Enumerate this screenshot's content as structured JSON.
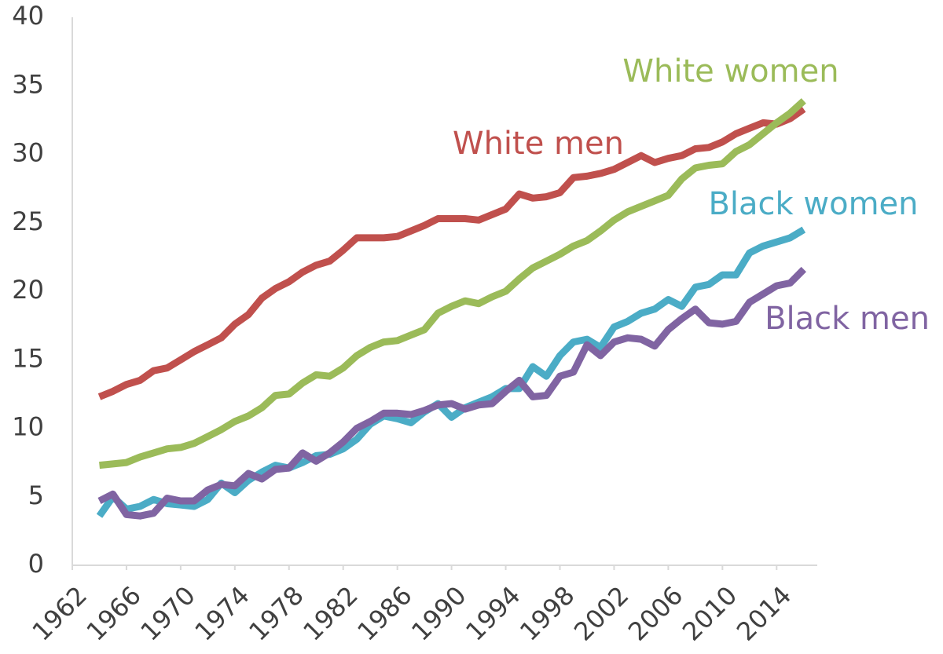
{
  "chart_data": {
    "type": "line",
    "x": [
      1964,
      1965,
      1966,
      1967,
      1968,
      1969,
      1970,
      1971,
      1972,
      1973,
      1974,
      1975,
      1976,
      1977,
      1978,
      1979,
      1980,
      1981,
      1982,
      1983,
      1984,
      1985,
      1986,
      1987,
      1988,
      1989,
      1990,
      1991,
      1992,
      1993,
      1994,
      1995,
      1996,
      1997,
      1998,
      1999,
      2000,
      2001,
      2002,
      2003,
      2004,
      2005,
      2006,
      2007,
      2008,
      2009,
      2010,
      2011,
      2012,
      2013,
      2014,
      2015,
      2016
    ],
    "series": [
      {
        "name": "White men",
        "color": "#c0504d",
        "values": [
          12.3,
          12.7,
          13.2,
          13.5,
          14.2,
          14.4,
          15.0,
          15.6,
          16.1,
          16.6,
          17.6,
          18.3,
          19.5,
          20.2,
          20.7,
          21.4,
          21.9,
          22.2,
          23.0,
          23.9,
          23.9,
          23.9,
          24.0,
          24.4,
          24.8,
          25.3,
          25.3,
          25.3,
          25.2,
          25.6,
          26.0,
          27.1,
          26.8,
          26.9,
          27.2,
          28.3,
          28.4,
          28.6,
          28.9,
          29.4,
          29.9,
          29.4,
          29.7,
          29.9,
          30.4,
          30.5,
          30.9,
          31.5,
          31.9,
          32.3,
          32.2,
          32.6,
          33.3
        ]
      },
      {
        "name": "White women",
        "color": "#9bbb59",
        "values": [
          7.3,
          7.4,
          7.5,
          7.9,
          8.2,
          8.5,
          8.6,
          8.9,
          9.4,
          9.9,
          10.5,
          10.9,
          11.5,
          12.4,
          12.5,
          13.3,
          13.9,
          13.8,
          14.4,
          15.3,
          15.9,
          16.3,
          16.4,
          16.8,
          17.2,
          18.4,
          18.9,
          19.3,
          19.1,
          19.6,
          20.0,
          20.9,
          21.7,
          22.2,
          22.7,
          23.3,
          23.7,
          24.4,
          25.2,
          25.8,
          26.2,
          26.6,
          27.0,
          28.2,
          29.0,
          29.2,
          29.3,
          30.2,
          30.7,
          31.5,
          32.3,
          33.0,
          33.9
        ]
      },
      {
        "name": "Black women",
        "color": "#4bacc6",
        "values": [
          3.6,
          5.0,
          4.1,
          4.3,
          4.8,
          4.5,
          4.4,
          4.3,
          4.8,
          6.0,
          5.3,
          6.2,
          6.8,
          7.3,
          7.1,
          7.5,
          8.0,
          8.1,
          8.5,
          9.2,
          10.3,
          10.9,
          10.7,
          10.4,
          11.2,
          11.8,
          10.8,
          11.5,
          11.9,
          12.3,
          12.9,
          12.9,
          14.5,
          13.8,
          15.3,
          16.3,
          16.5,
          15.9,
          17.4,
          17.8,
          18.4,
          18.7,
          19.4,
          18.9,
          20.3,
          20.5,
          21.2,
          21.2,
          22.8,
          23.3,
          23.6,
          23.9,
          24.5
        ]
      },
      {
        "name": "Black men",
        "color": "#8064a2",
        "values": [
          4.7,
          5.2,
          3.7,
          3.6,
          3.8,
          4.9,
          4.7,
          4.7,
          5.5,
          5.9,
          5.8,
          6.7,
          6.3,
          7.0,
          7.1,
          8.2,
          7.6,
          8.2,
          9.0,
          10.0,
          10.5,
          11.1,
          11.1,
          11.0,
          11.3,
          11.7,
          11.8,
          11.4,
          11.7,
          11.8,
          12.7,
          13.5,
          12.3,
          12.4,
          13.8,
          14.1,
          16.1,
          15.3,
          16.3,
          16.6,
          16.5,
          16.0,
          17.2,
          18.0,
          18.7,
          17.7,
          17.6,
          17.8,
          19.2,
          19.8,
          20.4,
          20.6,
          21.6
        ]
      }
    ],
    "xlim": [
      1962,
      2017
    ],
    "xticks": [
      1962,
      1966,
      1970,
      1974,
      1978,
      1982,
      1986,
      1990,
      1994,
      1998,
      2002,
      2006,
      2010,
      2014
    ],
    "ylim": [
      0,
      40
    ],
    "yticks": [
      0,
      5,
      10,
      15,
      20,
      25,
      30,
      35,
      40
    ],
    "grid": false
  }
}
